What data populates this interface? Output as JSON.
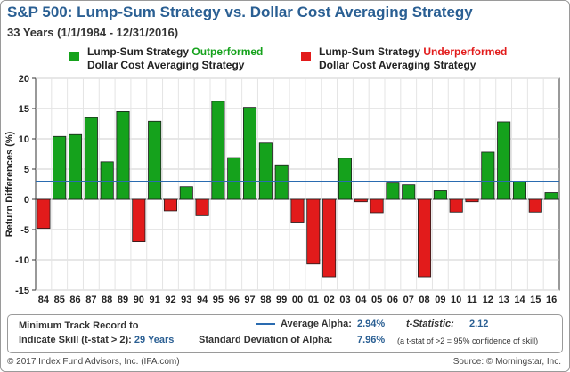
{
  "header": {
    "title": "S&P 500: Lump-Sum Strategy vs. Dollar Cost Averaging Strategy",
    "subtitle": "33 Years (1/1/1984 - 12/31/2016)"
  },
  "legend": {
    "outperformed": {
      "prefix": "Lump-Sum Strategy ",
      "highlight": "Outperformed",
      "line2": "Dollar Cost Averaging Strategy",
      "color": "#15a21c"
    },
    "underperformed": {
      "prefix": "Lump-Sum Strategy ",
      "highlight": "Underperformed",
      "line2": "Dollar Cost Averaging Strategy",
      "color": "#e21b1b"
    }
  },
  "colors": {
    "positive_bar": "#15a21c",
    "negative_bar": "#e21b1b",
    "average_line": "#2a6bb0",
    "title": "#2a5f93"
  },
  "chart_data": {
    "type": "bar",
    "ylabel": "Return Differences (%)",
    "ylim": [
      -15,
      20
    ],
    "yticks": [
      -15,
      -10,
      -5,
      0,
      5,
      10,
      15,
      20
    ],
    "grid": true,
    "categories": [
      "84",
      "85",
      "86",
      "87",
      "88",
      "89",
      "90",
      "91",
      "92",
      "93",
      "94",
      "95",
      "96",
      "97",
      "98",
      "99",
      "00",
      "01",
      "02",
      "03",
      "04",
      "05",
      "06",
      "07",
      "08",
      "09",
      "10",
      "11",
      "12",
      "13",
      "14",
      "15",
      "16"
    ],
    "values": [
      -4.8,
      10.4,
      10.7,
      13.5,
      6.2,
      14.5,
      -7.0,
      12.9,
      -1.9,
      2.1,
      -2.7,
      16.2,
      6.9,
      15.2,
      9.3,
      5.7,
      -3.9,
      -10.7,
      -12.8,
      6.8,
      -0.4,
      -2.2,
      2.7,
      2.4,
      -12.8,
      1.4,
      -2.1,
      -0.4,
      7.8,
      12.8,
      3.0,
      -2.1,
      1.1
    ],
    "average_line": 2.94
  },
  "summary": {
    "track_record_label_1": "Minimum Track Record to",
    "track_record_label_2": "Indicate Skill (t-stat > 2):",
    "track_record_value": "29 Years",
    "avg_alpha_label": "Average Alpha:",
    "avg_alpha_value": "2.94%",
    "tstat_label": "t-Statistic:",
    "tstat_value": "2.12",
    "sd_label": "Standard Deviation of Alpha:",
    "sd_value": "7.96%",
    "note": "(a t-stat of >2 = 95% confidence of skill)"
  },
  "footer": {
    "left": "© 2017 Index Fund Advisors, Inc. (IFA.com)",
    "right": "Source: © Morningstar, Inc."
  }
}
